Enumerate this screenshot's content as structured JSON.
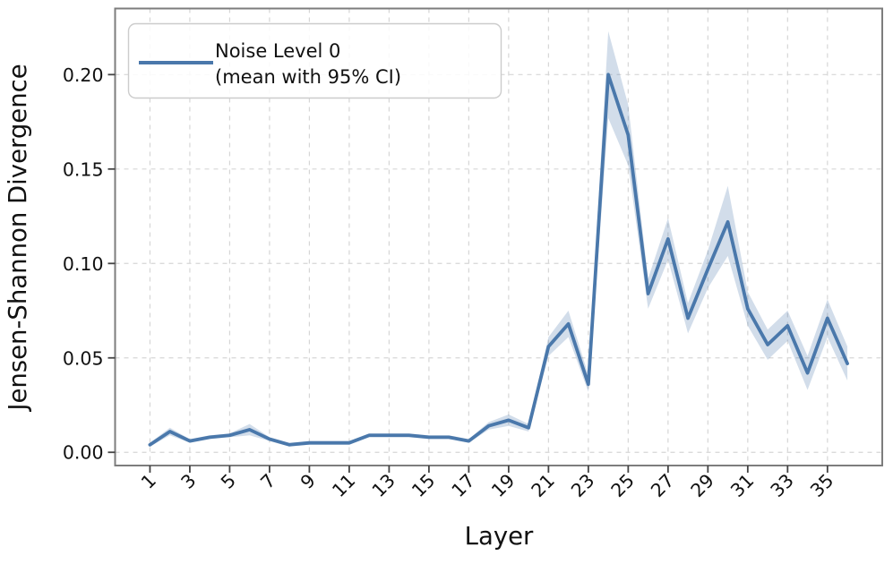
{
  "chart_data": {
    "type": "line",
    "title": "",
    "xlabel": "Layer",
    "ylabel": "Jensen-Shannon Divergence",
    "legend": {
      "position": "upper left",
      "line1": "Noise Level 0",
      "line2": "(mean with 95% CI)"
    },
    "x": [
      1,
      2,
      3,
      4,
      5,
      6,
      7,
      8,
      9,
      10,
      11,
      12,
      13,
      14,
      15,
      16,
      17,
      18,
      19,
      20,
      21,
      22,
      23,
      24,
      25,
      26,
      27,
      28,
      29,
      30,
      31,
      32,
      33,
      34,
      35,
      36
    ],
    "series": [
      {
        "name": "Noise Level 0 (mean with 95% CI)",
        "mean": [
          0.004,
          0.011,
          0.006,
          0.008,
          0.009,
          0.012,
          0.007,
          0.004,
          0.005,
          0.005,
          0.005,
          0.009,
          0.009,
          0.009,
          0.008,
          0.008,
          0.006,
          0.014,
          0.017,
          0.013,
          0.056,
          0.068,
          0.036,
          0.2,
          0.168,
          0.084,
          0.113,
          0.071,
          0.097,
          0.122,
          0.076,
          0.057,
          0.067,
          0.042,
          0.071,
          0.047
        ],
        "ci_lower": [
          0.003,
          0.009,
          0.005,
          0.007,
          0.008,
          0.009,
          0.006,
          0.003,
          0.004,
          0.004,
          0.004,
          0.008,
          0.008,
          0.008,
          0.007,
          0.007,
          0.005,
          0.012,
          0.014,
          0.011,
          0.051,
          0.061,
          0.032,
          0.177,
          0.152,
          0.076,
          0.102,
          0.063,
          0.087,
          0.104,
          0.067,
          0.049,
          0.059,
          0.033,
          0.061,
          0.038
        ],
        "ci_upper": [
          0.005,
          0.013,
          0.007,
          0.009,
          0.01,
          0.015,
          0.008,
          0.005,
          0.006,
          0.006,
          0.006,
          0.01,
          0.01,
          0.01,
          0.009,
          0.009,
          0.007,
          0.016,
          0.02,
          0.015,
          0.061,
          0.075,
          0.041,
          0.223,
          0.184,
          0.092,
          0.124,
          0.079,
          0.107,
          0.141,
          0.085,
          0.065,
          0.075,
          0.051,
          0.081,
          0.056
        ]
      }
    ],
    "x_ticks": [
      1,
      3,
      5,
      7,
      9,
      11,
      13,
      15,
      17,
      19,
      21,
      23,
      25,
      27,
      29,
      31,
      33,
      35
    ],
    "x_tick_labels": [
      "1",
      "3",
      "5",
      "7",
      "9",
      "11",
      "13",
      "15",
      "17",
      "19",
      "21",
      "23",
      "25",
      "27",
      "29",
      "31",
      "33",
      "35"
    ],
    "y_ticks": [
      0.0,
      0.05,
      0.1,
      0.15,
      0.2
    ],
    "y_tick_labels": [
      "0.00",
      "0.05",
      "0.10",
      "0.15",
      "0.20"
    ],
    "xlim": [
      -0.75,
      37.75
    ],
    "ylim": [
      -0.007,
      0.235
    ],
    "grid": true,
    "colors": {
      "line": "#4a78ab",
      "ci_fill": "#4a78ab",
      "ci_opacity": 0.25,
      "grid": "#d6d6d6",
      "spine": "#7d7d7d",
      "tick": "#444444",
      "text": "#111111",
      "legend_border": "#cccccc",
      "legend_fill": "#ffffff"
    }
  }
}
